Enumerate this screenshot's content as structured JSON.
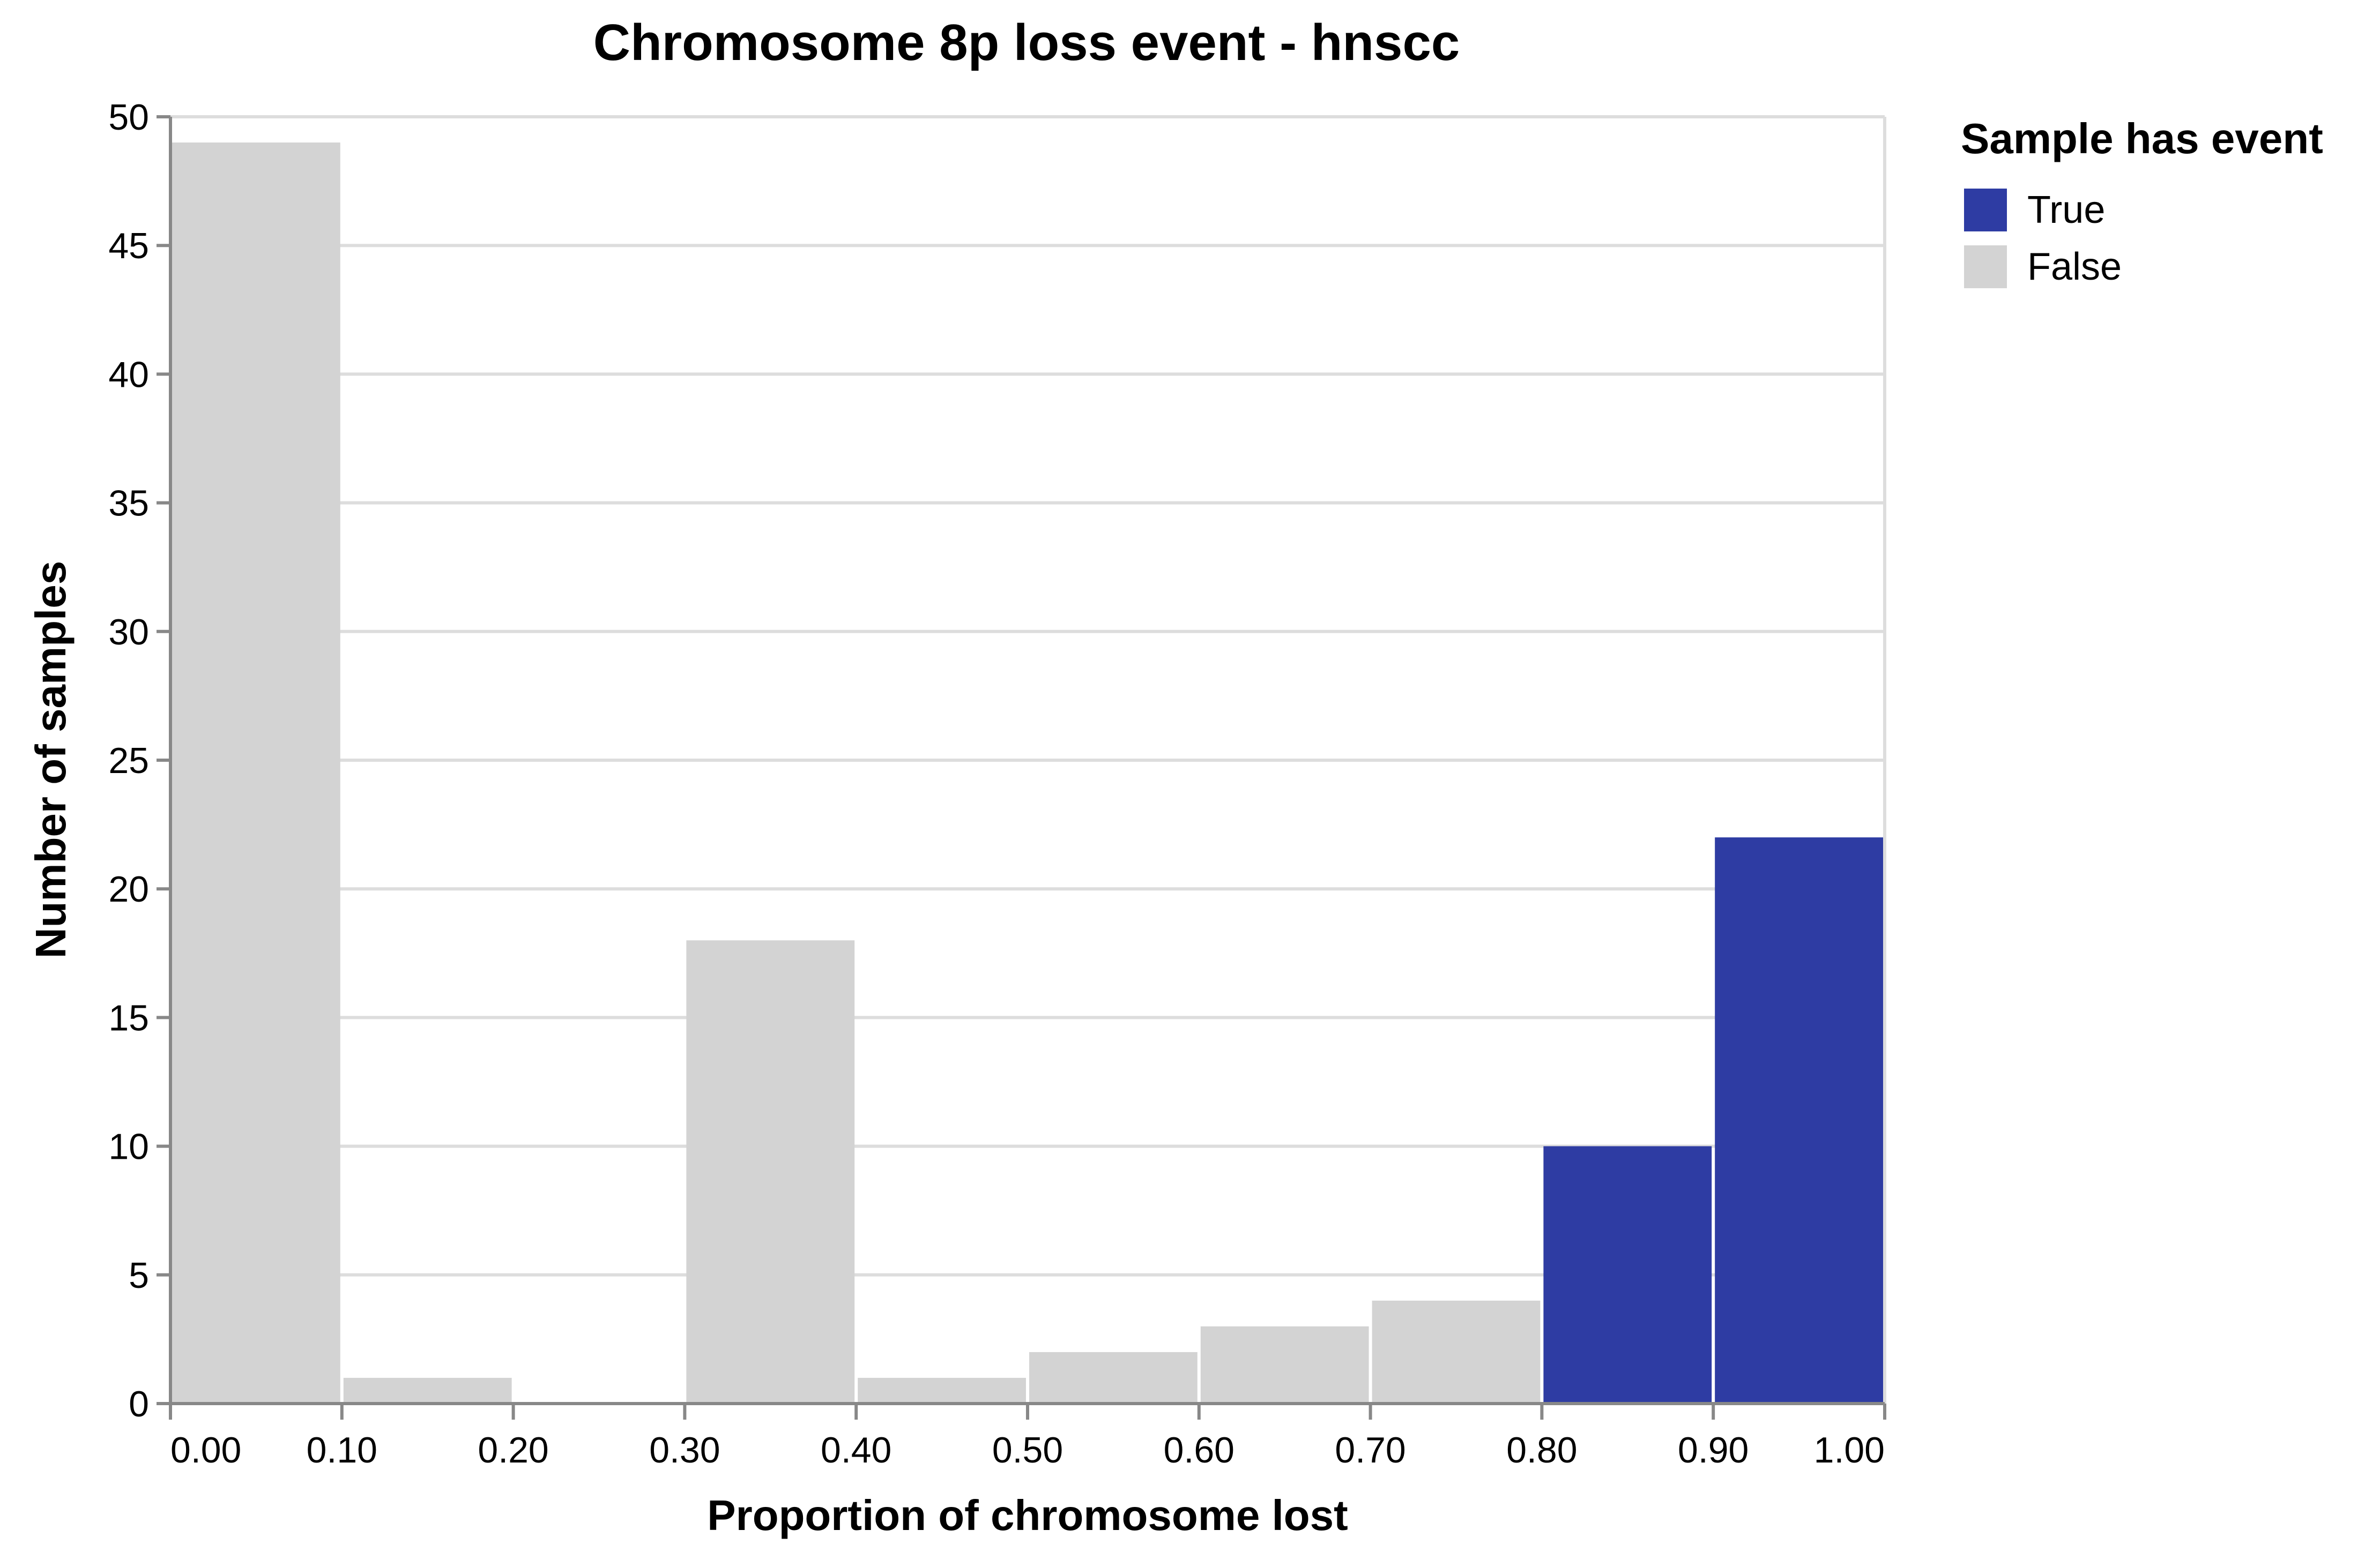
{
  "chart_data": {
    "type": "bar",
    "title": "Chromosome 8p loss event - hnscc",
    "xlabel": "Proportion of chromosome lost",
    "ylabel": "Number of samples",
    "xlim": [
      0,
      1
    ],
    "ylim": [
      0,
      50
    ],
    "x_ticks": [
      "0.00",
      "0.10",
      "0.20",
      "0.30",
      "0.40",
      "0.50",
      "0.60",
      "0.70",
      "0.80",
      "0.90",
      "1.00"
    ],
    "y_ticks": [
      0,
      5,
      10,
      15,
      20,
      25,
      30,
      35,
      40,
      45,
      50
    ],
    "grid": true,
    "legend": {
      "title": "Sample has event",
      "placement": "right",
      "entries": [
        {
          "label": "True",
          "color": "#2e3ca3"
        },
        {
          "label": "False",
          "color": "#d3d3d3"
        }
      ]
    },
    "bins": [
      {
        "x0": 0.0,
        "x1": 0.1,
        "count": 49,
        "has_event": "False"
      },
      {
        "x0": 0.1,
        "x1": 0.2,
        "count": 1,
        "has_event": "False"
      },
      {
        "x0": 0.2,
        "x1": 0.3,
        "count": 0,
        "has_event": "False"
      },
      {
        "x0": 0.3,
        "x1": 0.4,
        "count": 18,
        "has_event": "False"
      },
      {
        "x0": 0.4,
        "x1": 0.5,
        "count": 1,
        "has_event": "False"
      },
      {
        "x0": 0.5,
        "x1": 0.6,
        "count": 2,
        "has_event": "False"
      },
      {
        "x0": 0.6,
        "x1": 0.7,
        "count": 3,
        "has_event": "False"
      },
      {
        "x0": 0.7,
        "x1": 0.8,
        "count": 4,
        "has_event": "False"
      },
      {
        "x0": 0.8,
        "x1": 0.9,
        "count": 10,
        "has_event": "True"
      },
      {
        "x0": 0.9,
        "x1": 1.0,
        "count": 22,
        "has_event": "True"
      }
    ]
  }
}
